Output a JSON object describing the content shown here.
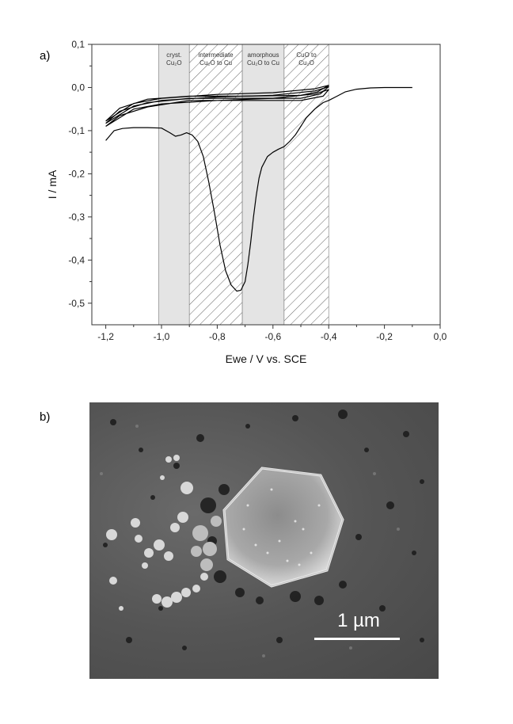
{
  "panels": {
    "a_label": "a)",
    "b_label": "b)"
  },
  "chart_data": {
    "type": "line",
    "xlabel": "Ewe / V vs. SCE",
    "ylabel": "I / mA",
    "xlim": [
      -1.25,
      0.0
    ],
    "ylim": [
      -0.55,
      0.1
    ],
    "x_ticks": [
      -1.2,
      -1.0,
      -0.8,
      -0.6,
      -0.4,
      -0.2,
      0.0
    ],
    "x_tick_labels": [
      "-1,2",
      "-1,0",
      "-0,8",
      "-0,6",
      "-0,4",
      "-0,2",
      "0,0"
    ],
    "y_ticks": [
      0.1,
      0.0,
      -0.1,
      -0.2,
      -0.3,
      -0.4,
      -0.5
    ],
    "y_tick_labels": [
      "0,1",
      "0,0",
      "-0,1",
      "-0,2",
      "-0,3",
      "-0,4",
      "-0,5"
    ],
    "regions": [
      {
        "x_range": [
          -1.01,
          -0.9
        ],
        "fill": "gray",
        "label_lines": [
          "cryst.",
          "Cu₂O"
        ]
      },
      {
        "x_range": [
          -0.9,
          -0.71
        ],
        "fill": "hatched",
        "label_lines": [
          "intermediate",
          "Cu₂O to Cu"
        ]
      },
      {
        "x_range": [
          -0.71,
          -0.56
        ],
        "fill": "gray",
        "label_lines": [
          "amorphous",
          "Cu₂O to Cu"
        ]
      },
      {
        "x_range": [
          -0.56,
          -0.4
        ],
        "fill": "hatched",
        "label_lines": [
          "CuO to",
          "Cu₂O"
        ]
      }
    ],
    "series": [
      {
        "x": [
          -1.2,
          -1.17,
          -1.14,
          -1.1,
          -1.05,
          -1.0,
          -0.97,
          -0.95,
          -0.93,
          -0.91,
          -0.89,
          -0.87,
          -0.85,
          -0.83,
          -0.81,
          -0.79,
          -0.77,
          -0.75,
          -0.73,
          -0.715,
          -0.7,
          -0.69,
          -0.68,
          -0.67,
          -0.66,
          -0.65,
          -0.64,
          -0.62,
          -0.6,
          -0.58,
          -0.56,
          -0.54,
          -0.52,
          -0.5,
          -0.48,
          -0.45,
          -0.42,
          -0.4,
          -0.37,
          -0.34,
          -0.3,
          -0.25,
          -0.2,
          -0.15,
          -0.1
        ],
        "y": [
          -0.123,
          -0.1,
          -0.095,
          -0.093,
          -0.093,
          -0.094,
          -0.105,
          -0.113,
          -0.11,
          -0.105,
          -0.11,
          -0.125,
          -0.16,
          -0.22,
          -0.29,
          -0.365,
          -0.425,
          -0.458,
          -0.472,
          -0.47,
          -0.45,
          -0.41,
          -0.36,
          -0.3,
          -0.25,
          -0.21,
          -0.185,
          -0.16,
          -0.15,
          -0.143,
          -0.137,
          -0.125,
          -0.11,
          -0.09,
          -0.07,
          -0.05,
          -0.035,
          -0.03,
          -0.02,
          -0.01,
          -0.004,
          -0.001,
          0.0,
          0.0,
          0.0
        ]
      },
      {
        "x": [
          -1.2,
          -1.1,
          -1.0,
          -0.8,
          -0.6,
          -0.45,
          -0.4,
          -0.42,
          -0.5,
          -0.7,
          -0.9,
          -1.05,
          -1.15,
          -1.2
        ],
        "y": [
          -0.09,
          -0.05,
          -0.038,
          -0.03,
          -0.025,
          -0.015,
          -0.005,
          -0.02,
          -0.03,
          -0.03,
          -0.03,
          -0.045,
          -0.065,
          -0.09
        ]
      },
      {
        "x": [
          -1.2,
          -1.1,
          -1.0,
          -0.8,
          -0.6,
          -0.45,
          -0.4,
          -0.43,
          -0.5,
          -0.7,
          -0.9,
          -1.05,
          -1.15,
          -1.2
        ],
        "y": [
          -0.083,
          -0.043,
          -0.03,
          -0.022,
          -0.018,
          -0.008,
          0.002,
          -0.015,
          -0.025,
          -0.025,
          -0.025,
          -0.035,
          -0.055,
          -0.083
        ]
      },
      {
        "x": [
          -1.2,
          -1.1,
          -1.0,
          -0.8,
          -0.6,
          -0.45,
          -0.4,
          -0.44,
          -0.5,
          -0.7,
          -0.9,
          -1.05,
          -1.15,
          -1.2
        ],
        "y": [
          -0.078,
          -0.037,
          -0.025,
          -0.016,
          -0.012,
          -0.003,
          0.005,
          -0.01,
          -0.018,
          -0.02,
          -0.02,
          -0.027,
          -0.048,
          -0.078
        ]
      }
    ]
  },
  "sem": {
    "scale_bar_label": "1 µm"
  }
}
